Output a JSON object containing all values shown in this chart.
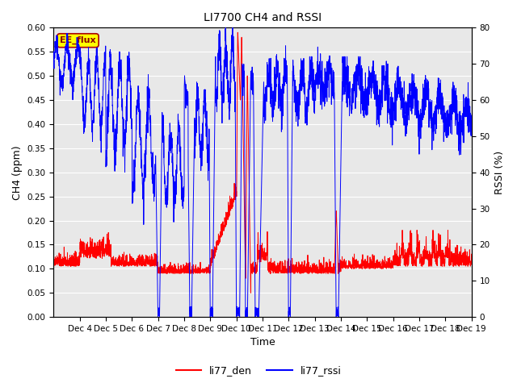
{
  "title": "LI7700 CH4 and RSSI",
  "xlabel": "Time",
  "ylabel_left": "CH4 (ppm)",
  "ylabel_right": "RSSI (%)",
  "ylim_left": [
    0.0,
    0.6
  ],
  "ylim_right": [
    0,
    80
  ],
  "yticks_left": [
    0.0,
    0.05,
    0.1,
    0.15,
    0.2,
    0.25,
    0.3,
    0.35,
    0.4,
    0.45,
    0.5,
    0.55,
    0.6
  ],
  "yticks_right": [
    0,
    10,
    20,
    30,
    40,
    50,
    60,
    70,
    80
  ],
  "color_den": "#FF0000",
  "color_rssi": "#0000FF",
  "legend_labels": [
    "li77_den",
    "li77_rssi"
  ],
  "annotation_text": "EE_flux",
  "annotation_bg": "#FFFF00",
  "annotation_border": "#AA0000",
  "background_color": "#E8E8E8",
  "grid_color": "#FFFFFF",
  "linewidth": 0.7,
  "title_fontsize": 10,
  "label_fontsize": 9,
  "tick_fontsize": 7.5,
  "legend_fontsize": 9
}
